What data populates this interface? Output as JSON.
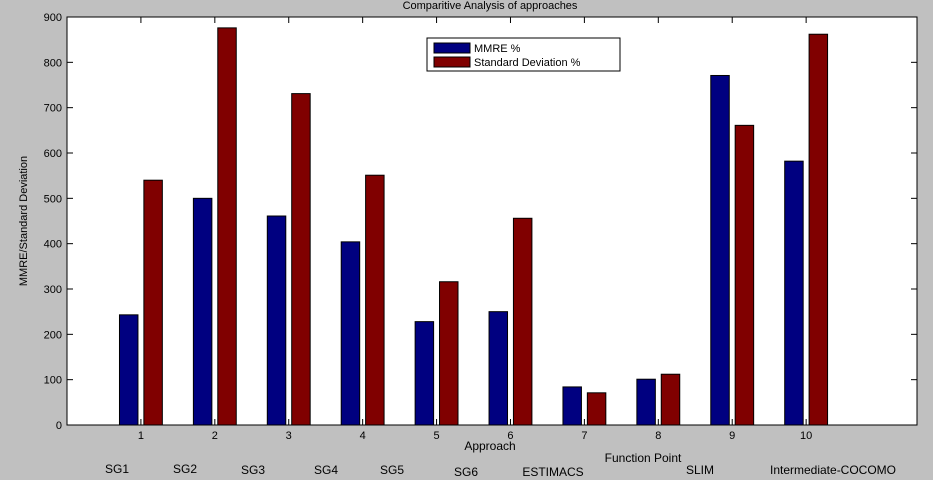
{
  "chart_data": {
    "type": "bar",
    "title": "Comparitive Analysis of approaches",
    "xlabel": "Approach",
    "ylabel": "MMRE/Standard Deviation",
    "categories": [
      "1",
      "2",
      "3",
      "4",
      "5",
      "6",
      "7",
      "8",
      "9",
      "10"
    ],
    "category_names": [
      "SG1",
      "SG2",
      "SG3",
      "SG4",
      "SG5",
      "SG6",
      "ESTIMACS",
      "Function Point",
      "SLIM",
      "Intermediate-COCOMO"
    ],
    "series": [
      {
        "name": "MMRE %",
        "color": "#000080",
        "values": [
          243,
          500,
          461,
          404,
          228,
          250,
          84,
          101,
          771,
          582
        ]
      },
      {
        "name": "Standard Deviation %",
        "color": "#800000",
        "values": [
          540,
          876,
          731,
          551,
          316,
          456,
          71,
          112,
          661,
          862
        ]
      }
    ],
    "xlim": [
      0,
      11.5
    ],
    "ylim": [
      0,
      900
    ],
    "yticks": [
      0,
      100,
      200,
      300,
      400,
      500,
      600,
      700,
      800,
      900
    ],
    "grid": false,
    "legend_position": "top-center"
  }
}
